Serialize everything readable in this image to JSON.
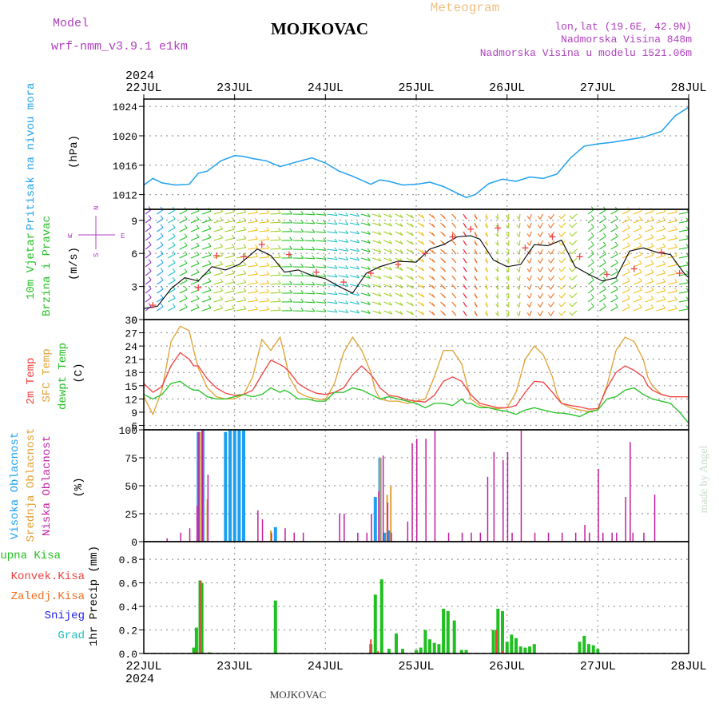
{
  "header": {
    "model_label": "Model",
    "model_value": "wrf-nmm_v3.9.1  e1km",
    "title": "MOJKOVAC",
    "subtitle": "Meteogram",
    "lonlat": "lon,lat (19.6E, 42.9N)",
    "elev": "Nadmorska Visina 848m",
    "elev_model": "Nadmorska Visina u modelu 1521.06m",
    "footer": "MOJKOVAC",
    "watermark": "made by Angel"
  },
  "colors": {
    "pressure": "#1ea0f0",
    "temp2m": "#f04040",
    "sfc": "#e0a030",
    "dewpt": "#20c020",
    "cloud_high": "#1ea0f0",
    "cloud_mid": "#e0a030",
    "cloud_low": "#c020a0",
    "precip_total": "#20c020",
    "precip_conv": "#f04040",
    "precip_frozen": "#f07020",
    "precip_snow": "#2020f0",
    "precip_grad": "#20c0c0",
    "label_purple": "#b040c0",
    "title_orange": "#f0c080"
  },
  "axes": {
    "year_top": "2024",
    "year_bottom": "2024",
    "x_ticks": [
      "22JUL",
      "23JUL",
      "24JUL",
      "25JUL",
      "26JUL",
      "27JUL",
      "28JUL"
    ]
  },
  "chart_data": [
    {
      "type": "line",
      "id": "pressure",
      "label": "Pritisak na nivou mora",
      "unit": "(hPa)",
      "ylim": [
        1010,
        1025
      ],
      "yticks": [
        1012,
        1016,
        1020,
        1024
      ],
      "x_days": [
        0.0,
        0.1,
        0.2,
        0.35,
        0.5,
        0.6,
        0.7,
        0.85,
        1.0,
        1.1,
        1.2,
        1.35,
        1.5,
        1.7,
        1.85,
        2.0,
        2.15,
        2.3,
        2.5,
        2.6,
        2.7,
        2.85,
        3.0,
        3.15,
        3.3,
        3.45,
        3.55,
        3.65,
        3.8,
        3.95,
        4.1,
        4.25,
        4.4,
        4.55,
        4.7,
        4.85,
        5.0,
        5.15,
        5.3,
        5.5,
        5.7,
        5.85,
        6.0
      ],
      "y": [
        1013.3,
        1014.2,
        1013.6,
        1013.3,
        1013.4,
        1014.9,
        1015.2,
        1016.6,
        1017.3,
        1017.2,
        1016.9,
        1016.6,
        1015.8,
        1016.5,
        1017.0,
        1016.3,
        1015.2,
        1014.5,
        1013.4,
        1014.0,
        1013.8,
        1013.3,
        1013.4,
        1013.7,
        1013.1,
        1012.2,
        1011.6,
        1012.0,
        1013.5,
        1014.1,
        1013.8,
        1014.4,
        1014.2,
        1014.8,
        1017.0,
        1018.6,
        1018.9,
        1019.1,
        1019.4,
        1019.8,
        1020.6,
        1022.7,
        1023.9
      ]
    },
    {
      "type": "barbs",
      "id": "wind",
      "label": "10m Vjetar Brzina i Pravac",
      "unit": "(m/s)",
      "compass": [
        "N",
        "W",
        "E",
        "S"
      ],
      "ylim": [
        0,
        10
      ],
      "yticks": [
        0,
        3,
        6,
        9
      ],
      "speed_x_days": [
        0.0,
        0.15,
        0.3,
        0.45,
        0.6,
        0.75,
        0.9,
        1.05,
        1.25,
        1.4,
        1.55,
        1.7,
        1.85,
        2.0,
        2.15,
        2.3,
        2.45,
        2.6,
        2.8,
        3.0,
        3.15,
        3.3,
        3.45,
        3.6,
        3.7,
        3.85,
        4.0,
        4.15,
        4.3,
        4.45,
        4.6,
        4.75,
        4.9,
        5.05,
        5.2,
        5.35,
        5.5,
        5.65,
        5.8,
        5.95,
        6.0
      ],
      "speed": [
        1.0,
        1.2,
        2.8,
        3.8,
        3.5,
        4.8,
        4.5,
        5.0,
        6.4,
        5.8,
        4.3,
        4.5,
        4.0,
        3.7,
        3.0,
        2.4,
        4.2,
        4.8,
        5.3,
        5.2,
        6.4,
        6.8,
        7.5,
        7.6,
        7.3,
        5.4,
        4.8,
        5.0,
        6.8,
        6.7,
        7.2,
        4.8,
        4.1,
        3.5,
        3.8,
        6.2,
        6.5,
        6.1,
        5.9,
        4.2,
        3.8
      ],
      "gust_x_days": [
        0.1,
        0.6,
        0.8,
        1.1,
        1.3,
        1.6,
        1.9,
        2.2,
        2.5,
        2.8,
        3.1,
        3.4,
        3.6,
        3.9,
        4.2,
        4.5,
        4.8,
        5.1,
        5.4,
        5.7,
        5.9
      ],
      "gust": [
        1.3,
        2.9,
        5.8,
        5.7,
        6.8,
        5.9,
        4.3,
        3.4,
        4.2,
        5.0,
        6.0,
        7.5,
        8.2,
        8.3,
        6.5,
        7.5,
        5.7,
        4.1,
        4.6,
        6.1,
        4.2
      ]
    },
    {
      "type": "line",
      "id": "temperature",
      "label_2m": "2m Temp",
      "label_sfc": "SFC Temp",
      "label_dew": "dewpt Temp",
      "unit": "(C)",
      "ylim": [
        5,
        30
      ],
      "yticks": [
        6,
        9,
        12,
        15,
        18,
        21,
        24,
        27,
        30
      ],
      "x_days": [
        0.0,
        0.1,
        0.2,
        0.3,
        0.4,
        0.5,
        0.55,
        0.6,
        0.7,
        0.8,
        0.9,
        1.0,
        1.1,
        1.2,
        1.3,
        1.4,
        1.5,
        1.55,
        1.6,
        1.7,
        1.8,
        1.9,
        2.0,
        2.1,
        2.2,
        2.3,
        2.4,
        2.5,
        2.55,
        2.6,
        2.7,
        2.8,
        2.9,
        3.0,
        3.1,
        3.2,
        3.3,
        3.4,
        3.5,
        3.55,
        3.6,
        3.7,
        3.8,
        3.9,
        4.0,
        4.1,
        4.2,
        4.3,
        4.4,
        4.5,
        4.55,
        4.6,
        4.7,
        4.8,
        4.9,
        5.0,
        5.1,
        5.2,
        5.3,
        5.4,
        5.5,
        5.55,
        5.6,
        5.7,
        5.8,
        5.9,
        6.0
      ],
      "t2m": [
        15.5,
        13.5,
        14.8,
        19.5,
        22.5,
        21.0,
        19.5,
        19.5,
        16.5,
        14.5,
        13.3,
        12.8,
        13.0,
        14.0,
        17.5,
        20.8,
        19.8,
        19.2,
        18.2,
        15.5,
        14.2,
        13.3,
        13.0,
        13.5,
        14.5,
        17.5,
        19.5,
        17.5,
        16.2,
        14.5,
        12.8,
        12.5,
        11.8,
        11.5,
        11.3,
        12.8,
        16.0,
        17.0,
        16.0,
        14.5,
        13.0,
        11.0,
        10.5,
        10.0,
        10.0,
        10.5,
        13.5,
        16.0,
        15.8,
        13.5,
        12.2,
        11.0,
        10.5,
        10.2,
        9.7,
        9.8,
        14.5,
        18.0,
        19.5,
        18.5,
        17.0,
        15.0,
        14.0,
        13.0,
        12.5,
        12.5,
        12.5
      ],
      "sfc": [
        12.5,
        8.5,
        14.0,
        25.0,
        28.5,
        27.5,
        23.0,
        19.0,
        14.5,
        12.5,
        12.0,
        12.0,
        13.0,
        17.0,
        25.5,
        23.0,
        26.0,
        22.0,
        17.0,
        13.5,
        12.5,
        12.0,
        11.8,
        15.5,
        22.5,
        26.0,
        23.0,
        18.0,
        14.0,
        12.0,
        11.5,
        11.5,
        11.0,
        11.5,
        12.0,
        17.0,
        23.0,
        23.0,
        20.0,
        16.0,
        12.0,
        10.5,
        10.0,
        9.8,
        10.0,
        13.5,
        21.0,
        24.0,
        22.0,
        17.0,
        13.0,
        11.0,
        10.0,
        9.5,
        9.2,
        9.5,
        15.0,
        23.0,
        26.0,
        25.0,
        21.0,
        17.0,
        15.0,
        13.0,
        12.5,
        12.5,
        12.5
      ],
      "dewpt": [
        13.0,
        12.0,
        13.0,
        15.5,
        16.0,
        14.5,
        14.0,
        14.0,
        12.5,
        12.0,
        12.0,
        12.5,
        13.0,
        12.5,
        13.0,
        14.5,
        13.5,
        14.0,
        13.5,
        12.0,
        12.0,
        11.5,
        11.5,
        13.5,
        13.5,
        14.5,
        14.0,
        13.0,
        12.5,
        12.0,
        12.5,
        12.0,
        11.5,
        11.0,
        10.0,
        11.0,
        11.0,
        10.5,
        12.0,
        11.0,
        11.0,
        10.0,
        10.0,
        9.5,
        9.2,
        8.5,
        9.5,
        10.0,
        9.5,
        9.0,
        8.8,
        8.8,
        8.5,
        8.0,
        9.0,
        9.5,
        12.0,
        12.5,
        14.0,
        14.5,
        13.0,
        12.5,
        12.0,
        11.5,
        11.0,
        9.0,
        6.5
      ]
    },
    {
      "type": "bar",
      "id": "clouds",
      "label_high": "Visoka Oblacnost",
      "label_mid": "Srednja Oblacnost",
      "label_low": "Niska Oblacnost",
      "unit": "(%)",
      "ylim": [
        0,
        100
      ],
      "yticks": [
        0,
        25,
        50,
        75,
        100
      ],
      "low": [
        [
          0.25,
          3
        ],
        [
          0.4,
          8
        ],
        [
          0.5,
          12
        ],
        [
          0.58,
          32
        ],
        [
          0.6,
          98
        ],
        [
          0.64,
          100
        ],
        [
          0.7,
          60
        ],
        [
          1.25,
          28
        ],
        [
          1.3,
          20
        ],
        [
          1.4,
          8
        ],
        [
          1.55,
          12
        ],
        [
          1.65,
          8
        ],
        [
          1.75,
          8
        ],
        [
          2.15,
          25
        ],
        [
          2.2,
          25
        ],
        [
          2.35,
          8
        ],
        [
          2.45,
          8
        ],
        [
          2.5,
          25
        ],
        [
          2.58,
          45
        ],
        [
          2.63,
          77
        ],
        [
          2.68,
          35
        ],
        [
          2.72,
          8
        ],
        [
          2.9,
          18
        ],
        [
          2.95,
          88
        ],
        [
          3.0,
          92
        ],
        [
          3.1,
          92
        ],
        [
          3.2,
          100
        ],
        [
          3.35,
          8
        ],
        [
          3.5,
          8
        ],
        [
          3.6,
          8
        ],
        [
          3.7,
          8
        ],
        [
          3.78,
          58
        ],
        [
          3.85,
          80
        ],
        [
          3.95,
          73
        ],
        [
          4.0,
          80
        ],
        [
          4.05,
          8
        ],
        [
          4.15,
          100
        ],
        [
          4.3,
          8
        ],
        [
          4.45,
          8
        ],
        [
          4.6,
          8
        ],
        [
          4.75,
          8
        ],
        [
          4.85,
          15
        ],
        [
          4.9,
          8
        ],
        [
          5.0,
          65
        ],
        [
          5.05,
          8
        ],
        [
          5.15,
          8
        ],
        [
          5.2,
          8
        ],
        [
          5.3,
          40
        ],
        [
          5.35,
          89
        ],
        [
          5.38,
          8
        ],
        [
          5.5,
          8
        ],
        [
          5.62,
          42
        ]
      ],
      "mid": [
        [
          0.62,
          98
        ],
        [
          0.7,
          38
        ],
        [
          1.4,
          10
        ],
        [
          2.6,
          75
        ],
        [
          2.68,
          42
        ],
        [
          2.72,
          50
        ]
      ],
      "high": [
        [
          0.6,
          98
        ],
        [
          0.65,
          100
        ],
        [
          0.9,
          98
        ],
        [
          0.95,
          100
        ],
        [
          1.0,
          100
        ],
        [
          1.05,
          100
        ],
        [
          1.1,
          100
        ],
        [
          1.45,
          13
        ],
        [
          2.55,
          40
        ],
        [
          2.6,
          75
        ],
        [
          2.65,
          8
        ],
        [
          2.7,
          10
        ]
      ]
    },
    {
      "type": "bar",
      "id": "precip",
      "label_total": "Ukupna Kisa",
      "label_conv": "Konvek.Kisa",
      "label_frozen": "Zaledj.Kisa",
      "label_snow": "Snijeg",
      "label_grad": "Grad",
      "ylabel": "1hr Precip (mm)",
      "ylim": [
        0,
        0.95
      ],
      "yticks": [
        0.0,
        0.2,
        0.4,
        0.6,
        0.8
      ],
      "total": [
        [
          0.55,
          0.05
        ],
        [
          0.58,
          0.22
        ],
        [
          0.62,
          0.62
        ],
        [
          0.64,
          0.6
        ],
        [
          0.72,
          0.01
        ],
        [
          1.45,
          0.45
        ],
        [
          2.5,
          0.08
        ],
        [
          2.55,
          0.5
        ],
        [
          2.62,
          0.63
        ],
        [
          2.7,
          0.04
        ],
        [
          2.78,
          0.17
        ],
        [
          2.85,
          0.04
        ],
        [
          3.0,
          0.03
        ],
        [
          3.05,
          0.05
        ],
        [
          3.1,
          0.2
        ],
        [
          3.15,
          0.12
        ],
        [
          3.2,
          0.09
        ],
        [
          3.25,
          0.08
        ],
        [
          3.3,
          0.38
        ],
        [
          3.35,
          0.36
        ],
        [
          3.42,
          0.28
        ],
        [
          3.5,
          0.03
        ],
        [
          3.55,
          0.03
        ],
        [
          3.85,
          0.2
        ],
        [
          3.9,
          0.38
        ],
        [
          3.95,
          0.36
        ],
        [
          4.0,
          0.1
        ],
        [
          4.05,
          0.16
        ],
        [
          4.1,
          0.13
        ],
        [
          4.15,
          0.06
        ],
        [
          4.2,
          0.05
        ],
        [
          4.25,
          0.06
        ],
        [
          4.3,
          0.08
        ],
        [
          4.8,
          0.1
        ],
        [
          4.85,
          0.15
        ],
        [
          4.9,
          0.08
        ],
        [
          4.95,
          0.07
        ],
        [
          5.0,
          0.04
        ]
      ],
      "conv": [
        [
          0.57,
          0.02
        ],
        [
          0.62,
          0.62
        ],
        [
          2.5,
          0.12
        ],
        [
          2.58,
          0.02
        ],
        [
          3.88,
          0.2
        ],
        [
          3.95,
          0.02
        ]
      ]
    }
  ]
}
